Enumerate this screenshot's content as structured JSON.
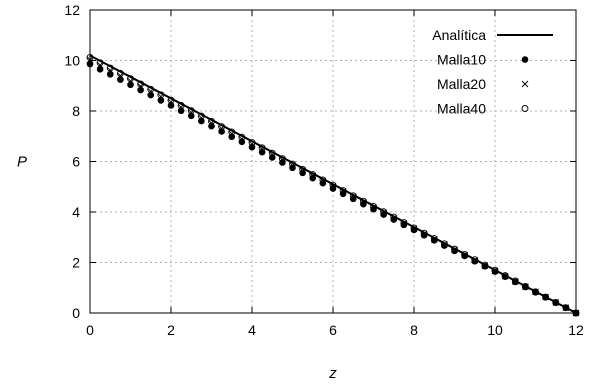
{
  "chart_data": {
    "type": "scatter",
    "title": "",
    "xlabel": "z",
    "ylabel": "P",
    "xlim": [
      0,
      12
    ],
    "ylim": [
      0,
      12
    ],
    "xticks": [
      0,
      2,
      4,
      6,
      8,
      10,
      12
    ],
    "yticks": [
      0,
      2,
      4,
      6,
      8,
      10,
      12
    ],
    "grid": true,
    "legend_position": "top-right",
    "series": [
      {
        "name": "Analítica",
        "style": "line",
        "x": [
          0,
          12
        ],
        "y": [
          10.2,
          0
        ]
      },
      {
        "name": "Malla10",
        "style": "filled-circle",
        "x": [
          0,
          0.25,
          0.5,
          0.75,
          1,
          1.25,
          1.5,
          1.75,
          2,
          2.25,
          2.5,
          2.75,
          3,
          3.25,
          3.5,
          3.75,
          4,
          4.25,
          4.5,
          4.75,
          5,
          5.25,
          5.5,
          5.75,
          6,
          6.25,
          6.5,
          6.75,
          7,
          7.25,
          7.5,
          7.75,
          8,
          8.25,
          8.5,
          8.75,
          9,
          9.25,
          9.5,
          9.75,
          10,
          10.25,
          10.5,
          10.75,
          11,
          11.25,
          11.5,
          11.75,
          12
        ],
        "y": [
          9.86,
          9.65,
          9.45,
          9.24,
          9.04,
          8.83,
          8.63,
          8.42,
          8.22,
          8.01,
          7.81,
          7.6,
          7.4,
          7.19,
          6.98,
          6.78,
          6.57,
          6.37,
          6.16,
          5.96,
          5.75,
          5.55,
          5.34,
          5.14,
          4.93,
          4.72,
          4.52,
          4.31,
          4.11,
          3.9,
          3.7,
          3.49,
          3.29,
          3.08,
          2.88,
          2.67,
          2.46,
          2.26,
          2.05,
          1.85,
          1.64,
          1.44,
          1.23,
          1.03,
          0.82,
          0.62,
          0.41,
          0.21,
          0
        ]
      },
      {
        "name": "Malla20",
        "style": "cross",
        "x": [
          0,
          0.25,
          0.5,
          0.75,
          1,
          1.25,
          1.5,
          1.75,
          2,
          2.25,
          2.5,
          2.75,
          3,
          3.25,
          3.5,
          3.75,
          4,
          4.25,
          4.5,
          4.75,
          5,
          5.25,
          5.5,
          5.75,
          6,
          6.25,
          6.5,
          6.75,
          7,
          7.25,
          7.5,
          7.75,
          8,
          8.25,
          8.5,
          8.75,
          9,
          9.25,
          9.5,
          9.75,
          10,
          10.25,
          10.5,
          10.75,
          11,
          11.25,
          11.5,
          11.75,
          12
        ],
        "y": [
          10.03,
          9.82,
          9.61,
          9.4,
          9.19,
          8.98,
          8.78,
          8.57,
          8.36,
          8.15,
          7.94,
          7.73,
          7.52,
          7.31,
          7.1,
          6.89,
          6.69,
          6.48,
          6.27,
          6.06,
          5.85,
          5.64,
          5.43,
          5.22,
          5.01,
          4.81,
          4.6,
          4.39,
          4.18,
          3.97,
          3.76,
          3.55,
          3.34,
          3.13,
          2.92,
          2.72,
          2.51,
          2.3,
          2.09,
          1.88,
          1.67,
          1.46,
          1.25,
          1.04,
          0.84,
          0.63,
          0.42,
          0.21,
          0
        ]
      },
      {
        "name": "Malla40",
        "style": "open-circle",
        "x": [
          0,
          0.25,
          0.5,
          0.75,
          1,
          1.25,
          1.5,
          1.75,
          2,
          2.25,
          2.5,
          2.75,
          3,
          3.25,
          3.5,
          3.75,
          4,
          4.25,
          4.5,
          4.75,
          5,
          5.25,
          5.5,
          5.75,
          6,
          6.25,
          6.5,
          6.75,
          7,
          7.25,
          7.5,
          7.75,
          8,
          8.25,
          8.5,
          8.75,
          9,
          9.25,
          9.5,
          9.75,
          10,
          10.25,
          10.5,
          10.75,
          11,
          11.25,
          11.5,
          11.75,
          12
        ],
        "y": [
          10.12,
          9.91,
          9.7,
          9.49,
          9.28,
          9.07,
          8.86,
          8.64,
          8.43,
          8.22,
          8.01,
          7.8,
          7.59,
          7.38,
          7.17,
          6.96,
          6.75,
          6.54,
          6.33,
          6.11,
          5.9,
          5.69,
          5.48,
          5.27,
          5.06,
          4.85,
          4.64,
          4.43,
          4.22,
          4.01,
          3.8,
          3.58,
          3.37,
          3.16,
          2.95,
          2.74,
          2.53,
          2.32,
          2.11,
          1.9,
          1.69,
          1.48,
          1.27,
          1.05,
          0.84,
          0.63,
          0.42,
          0.21,
          0
        ]
      }
    ]
  }
}
